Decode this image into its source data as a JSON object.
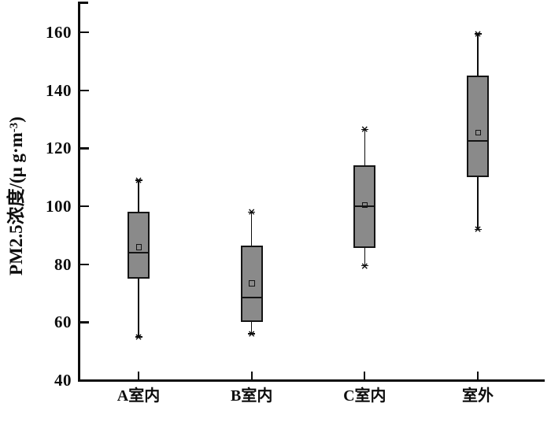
{
  "figure": {
    "ylabel_prefix": "PM2.5浓度/(μ g·m",
    "ylabel_sup": "-3",
    "ylabel_suffix": ")"
  },
  "chart_data": {
    "type": "boxplot",
    "title": "",
    "ylabel": "PM2.5浓度/(μ g·m⁻³)",
    "xlabel": "",
    "ylim": [
      40,
      170
    ],
    "yticks": [
      160,
      140,
      120,
      100,
      80,
      60,
      40
    ],
    "categories": [
      "A室内",
      "B室内",
      "C室内",
      "室外"
    ],
    "series": [
      {
        "name": "A室内",
        "whisker_low": 55,
        "q1": 75,
        "median": 84,
        "mean": 86,
        "q3": 98,
        "whisker_high": 109
      },
      {
        "name": "B室内",
        "whisker_low": 56,
        "q1": 60,
        "median": 68.5,
        "mean": 73.5,
        "q3": 86.5,
        "whisker_high": 98
      },
      {
        "name": "C室内",
        "whisker_low": 79.5,
        "q1": 85.5,
        "median": 100,
        "mean": 100.5,
        "q3": 114,
        "whisker_high": 126.5
      },
      {
        "name": "室外",
        "whisker_low": 92,
        "q1": 110,
        "median": 122.5,
        "mean": 125.5,
        "q3": 145,
        "whisker_high": 159.5
      }
    ],
    "markers": {
      "mean": "hollow-square",
      "whisker_cap": "asterisk",
      "median": "line"
    },
    "colors": {
      "box_fill": "#8a8a8a",
      "box_border": "#141414",
      "axis": "#0d0d0d",
      "background": "#ffffff"
    },
    "grid": false,
    "legend": "none"
  }
}
